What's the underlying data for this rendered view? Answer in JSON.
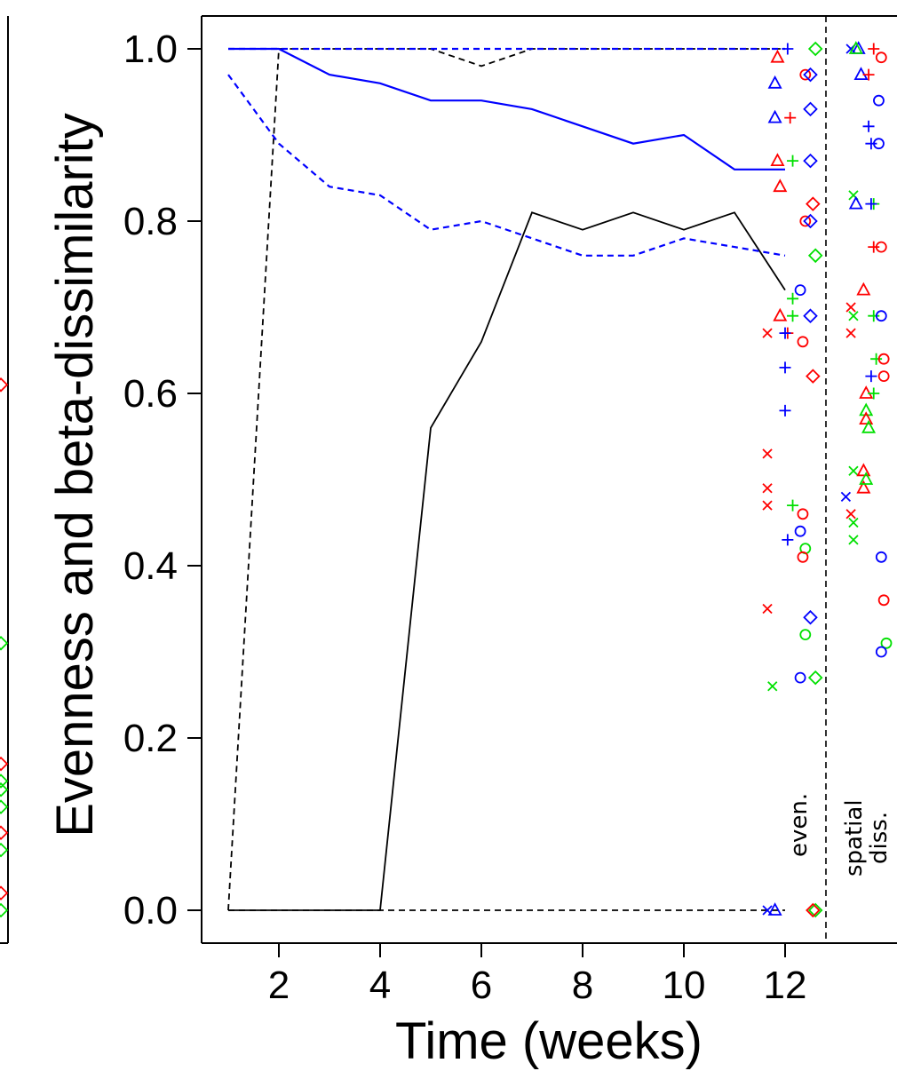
{
  "chart_data": {
    "type": "line",
    "xlabel": "Time (weeks)",
    "ylabel": "Evenness and beta-dissimilarity",
    "xlim": [
      0.5,
      12.8
    ],
    "ylim": [
      -0.03,
      1.04
    ],
    "x_ticks": [
      "2",
      "4",
      "6",
      "8",
      "10",
      "12"
    ],
    "y_ticks": [
      "0.0",
      "0.2",
      "0.4",
      "0.6",
      "0.8",
      "1.0"
    ],
    "panel_labels": [
      "even.",
      "spatial diss."
    ],
    "series": [
      {
        "color": "#000000",
        "style": "solid",
        "x": [
          1,
          2,
          3,
          4,
          5,
          6,
          7,
          8,
          9,
          10,
          11,
          12
        ],
        "y": [
          0,
          0,
          0,
          0,
          0.56,
          0.66,
          0.81,
          0.79,
          0.81,
          0.79,
          0.81,
          0.72
        ]
      },
      {
        "color": "#000000",
        "style": "dashed",
        "x": [
          1,
          2,
          3,
          4,
          5,
          6,
          7,
          8,
          9,
          10,
          11,
          12
        ],
        "y": [
          0,
          1.0,
          1.0,
          1.0,
          1.0,
          0.98,
          1.0,
          1.0,
          1.0,
          1.0,
          1.0,
          1.0
        ]
      },
      {
        "color": "#000000",
        "style": "dashed",
        "x": [
          1,
          2,
          3,
          4,
          5,
          6,
          7,
          8,
          9,
          10,
          11,
          12
        ],
        "y": [
          0,
          0,
          0,
          0,
          0,
          0,
          0,
          0,
          0,
          0,
          0,
          0
        ]
      },
      {
        "color": "#0000ff",
        "style": "solid",
        "x": [
          1,
          2,
          3,
          4,
          5,
          6,
          7,
          8,
          9,
          10,
          11,
          12
        ],
        "y": [
          1.0,
          1.0,
          0.97,
          0.96,
          0.94,
          0.94,
          0.93,
          0.91,
          0.89,
          0.9,
          0.86,
          0.86
        ]
      },
      {
        "color": "#0000ff",
        "style": "dashed",
        "x": [
          1,
          2,
          3,
          4,
          5,
          6,
          7,
          8,
          9,
          10,
          11,
          12
        ],
        "y": [
          0.97,
          0.89,
          0.84,
          0.83,
          0.79,
          0.8,
          0.78,
          0.76,
          0.76,
          0.78,
          0.77,
          0.76
        ]
      },
      {
        "color": "#0000ff",
        "style": "dashed",
        "x": [
          1,
          2,
          3,
          4,
          5,
          6,
          7,
          8,
          9,
          10,
          11,
          12
        ],
        "y": [
          1.0,
          1.0,
          1.0,
          1.0,
          1.0,
          1.0,
          1.0,
          1.0,
          1.0,
          1.0,
          1.0,
          1.0
        ]
      }
    ],
    "points": {
      "even": [
        {
          "m": "triangle",
          "c": "#ff0000",
          "x": 11.85,
          "y": 0.99
        },
        {
          "m": "triangle",
          "c": "#0000ff",
          "x": 11.8,
          "y": 0.96
        },
        {
          "m": "triangle",
          "c": "#0000ff",
          "x": 11.8,
          "y": 0.92
        },
        {
          "m": "triangle",
          "c": "#ff0000",
          "x": 11.85,
          "y": 0.87
        },
        {
          "m": "triangle",
          "c": "#ff0000",
          "x": 11.9,
          "y": 0.84
        },
        {
          "m": "triangle",
          "c": "#ff0000",
          "x": 11.9,
          "y": 0.69
        },
        {
          "m": "triangle",
          "c": "#0000ff",
          "x": 11.8,
          "y": 0.0
        },
        {
          "m": "plus",
          "c": "#0000ff",
          "x": 12.05,
          "y": 1.0
        },
        {
          "m": "plus",
          "c": "#ff0000",
          "x": 12.1,
          "y": 0.92
        },
        {
          "m": "plus",
          "c": "#00e000",
          "x": 12.15,
          "y": 0.87
        },
        {
          "m": "plus",
          "c": "#00e000",
          "x": 12.15,
          "y": 0.71
        },
        {
          "m": "plus",
          "c": "#00e000",
          "x": 12.15,
          "y": 0.69
        },
        {
          "m": "plus",
          "c": "#ff0000",
          "x": 12.05,
          "y": 0.67
        },
        {
          "m": "plus",
          "c": "#0000ff",
          "x": 12.0,
          "y": 0.67
        },
        {
          "m": "plus",
          "c": "#0000ff",
          "x": 12.0,
          "y": 0.63
        },
        {
          "m": "plus",
          "c": "#0000ff",
          "x": 12.0,
          "y": 0.58
        },
        {
          "m": "plus",
          "c": "#00e000",
          "x": 12.15,
          "y": 0.47
        },
        {
          "m": "plus",
          "c": "#0000ff",
          "x": 12.05,
          "y": 0.43
        },
        {
          "m": "x",
          "c": "#ff0000",
          "x": 11.65,
          "y": 0.67
        },
        {
          "m": "x",
          "c": "#ff0000",
          "x": 11.65,
          "y": 0.53
        },
        {
          "m": "x",
          "c": "#ff0000",
          "x": 11.65,
          "y": 0.49
        },
        {
          "m": "x",
          "c": "#ff0000",
          "x": 11.65,
          "y": 0.47
        },
        {
          "m": "x",
          "c": "#ff0000",
          "x": 11.65,
          "y": 0.35
        },
        {
          "m": "x",
          "c": "#00e000",
          "x": 11.75,
          "y": 0.26
        },
        {
          "m": "x",
          "c": "#0000ff",
          "x": 11.65,
          "y": 0.0
        },
        {
          "m": "circle",
          "c": "#ff0000",
          "x": 12.4,
          "y": 0.97
        },
        {
          "m": "circle",
          "c": "#ff0000",
          "x": 12.4,
          "y": 0.8
        },
        {
          "m": "circle",
          "c": "#0000ff",
          "x": 12.3,
          "y": 0.72
        },
        {
          "m": "circle",
          "c": "#ff0000",
          "x": 12.35,
          "y": 0.66
        },
        {
          "m": "circle",
          "c": "#ff0000",
          "x": 12.35,
          "y": 0.46
        },
        {
          "m": "circle",
          "c": "#0000ff",
          "x": 12.3,
          "y": 0.44
        },
        {
          "m": "circle",
          "c": "#00e000",
          "x": 12.4,
          "y": 0.42
        },
        {
          "m": "circle",
          "c": "#ff0000",
          "x": 12.35,
          "y": 0.41
        },
        {
          "m": "circle",
          "c": "#00e000",
          "x": 12.4,
          "y": 0.32
        },
        {
          "m": "circle",
          "c": "#0000ff",
          "x": 12.3,
          "y": 0.27
        },
        {
          "m": "diamond",
          "c": "#00e000",
          "x": 12.6,
          "y": 1.0
        },
        {
          "m": "diamond",
          "c": "#0000ff",
          "x": 12.5,
          "y": 0.97
        },
        {
          "m": "diamond",
          "c": "#0000ff",
          "x": 12.5,
          "y": 0.93
        },
        {
          "m": "diamond",
          "c": "#0000ff",
          "x": 12.5,
          "y": 0.87
        },
        {
          "m": "diamond",
          "c": "#ff0000",
          "x": 12.55,
          "y": 0.82
        },
        {
          "m": "diamond",
          "c": "#0000ff",
          "x": 12.5,
          "y": 0.8
        },
        {
          "m": "diamond",
          "c": "#00e000",
          "x": 12.6,
          "y": 0.76
        },
        {
          "m": "diamond",
          "c": "#0000ff",
          "x": 12.5,
          "y": 0.69
        },
        {
          "m": "diamond",
          "c": "#ff0000",
          "x": 12.55,
          "y": 0.62
        },
        {
          "m": "diamond",
          "c": "#0000ff",
          "x": 12.5,
          "y": 0.34
        },
        {
          "m": "diamond",
          "c": "#00e000",
          "x": 12.6,
          "y": 0.27
        },
        {
          "m": "diamond",
          "c": "#00e000",
          "x": 12.6,
          "y": 0.0
        },
        {
          "m": "diamond",
          "c": "#ff0000",
          "x": 12.55,
          "y": 0.0
        }
      ],
      "spatial": [
        {
          "m": "x",
          "c": "#0000ff",
          "x": 13.3,
          "y": 1.0
        },
        {
          "m": "triangle",
          "c": "#0000ff",
          "x": 13.45,
          "y": 1.0
        },
        {
          "m": "triangle",
          "c": "#00e000",
          "x": 13.4,
          "y": 1.0
        },
        {
          "m": "plus",
          "c": "#ff0000",
          "x": 13.75,
          "y": 1.0
        },
        {
          "m": "circle",
          "c": "#ff0000",
          "x": 13.9,
          "y": 0.99
        },
        {
          "m": "triangle",
          "c": "#0000ff",
          "x": 13.5,
          "y": 0.97
        },
        {
          "m": "plus",
          "c": "#ff0000",
          "x": 13.65,
          "y": 0.97
        },
        {
          "m": "circle",
          "c": "#0000ff",
          "x": 13.85,
          "y": 0.94
        },
        {
          "m": "plus",
          "c": "#0000ff",
          "x": 13.65,
          "y": 0.91
        },
        {
          "m": "plus",
          "c": "#0000ff",
          "x": 13.7,
          "y": 0.89
        },
        {
          "m": "circle",
          "c": "#0000ff",
          "x": 13.85,
          "y": 0.89
        },
        {
          "m": "x",
          "c": "#00e000",
          "x": 13.35,
          "y": 0.83
        },
        {
          "m": "triangle",
          "c": "#0000ff",
          "x": 13.4,
          "y": 0.82
        },
        {
          "m": "plus",
          "c": "#00e000",
          "x": 13.75,
          "y": 0.82
        },
        {
          "m": "plus",
          "c": "#0000ff",
          "x": 13.7,
          "y": 0.82
        },
        {
          "m": "plus",
          "c": "#ff0000",
          "x": 13.75,
          "y": 0.77
        },
        {
          "m": "circle",
          "c": "#ff0000",
          "x": 13.9,
          "y": 0.77
        },
        {
          "m": "triangle",
          "c": "#ff0000",
          "x": 13.55,
          "y": 0.72
        },
        {
          "m": "x",
          "c": "#ff0000",
          "x": 13.3,
          "y": 0.7
        },
        {
          "m": "x",
          "c": "#00e000",
          "x": 13.35,
          "y": 0.69
        },
        {
          "m": "plus",
          "c": "#00e000",
          "x": 13.75,
          "y": 0.69
        },
        {
          "m": "circle",
          "c": "#0000ff",
          "x": 13.9,
          "y": 0.69
        },
        {
          "m": "x",
          "c": "#ff0000",
          "x": 13.3,
          "y": 0.67
        },
        {
          "m": "plus",
          "c": "#00e000",
          "x": 13.8,
          "y": 0.64
        },
        {
          "m": "circle",
          "c": "#ff0000",
          "x": 13.95,
          "y": 0.64
        },
        {
          "m": "circle",
          "c": "#ff0000",
          "x": 13.95,
          "y": 0.62
        },
        {
          "m": "plus",
          "c": "#0000ff",
          "x": 13.7,
          "y": 0.62
        },
        {
          "m": "triangle",
          "c": "#ff0000",
          "x": 13.6,
          "y": 0.6
        },
        {
          "m": "plus",
          "c": "#00e000",
          "x": 13.75,
          "y": 0.6
        },
        {
          "m": "triangle",
          "c": "#00e000",
          "x": 13.6,
          "y": 0.58
        },
        {
          "m": "triangle",
          "c": "#ff0000",
          "x": 13.6,
          "y": 0.57
        },
        {
          "m": "triangle",
          "c": "#00e000",
          "x": 13.65,
          "y": 0.56
        },
        {
          "m": "x",
          "c": "#00e000",
          "x": 13.35,
          "y": 0.51
        },
        {
          "m": "triangle",
          "c": "#ff0000",
          "x": 13.55,
          "y": 0.51
        },
        {
          "m": "triangle",
          "c": "#ff0000",
          "x": 13.55,
          "y": 0.49
        },
        {
          "m": "triangle",
          "c": "#00e000",
          "x": 13.6,
          "y": 0.5
        },
        {
          "m": "x",
          "c": "#0000ff",
          "x": 13.2,
          "y": 0.48
        },
        {
          "m": "x",
          "c": "#ff0000",
          "x": 13.3,
          "y": 0.46
        },
        {
          "m": "x",
          "c": "#00e000",
          "x": 13.35,
          "y": 0.45
        },
        {
          "m": "x",
          "c": "#00e000",
          "x": 13.35,
          "y": 0.43
        },
        {
          "m": "circle",
          "c": "#0000ff",
          "x": 13.9,
          "y": 0.41
        },
        {
          "m": "circle",
          "c": "#ff0000",
          "x": 13.95,
          "y": 0.36
        },
        {
          "m": "circle",
          "c": "#00e000",
          "x": 14.0,
          "y": 0.31
        },
        {
          "m": "circle",
          "c": "#0000ff",
          "x": 13.9,
          "y": 0.3
        }
      ]
    }
  }
}
